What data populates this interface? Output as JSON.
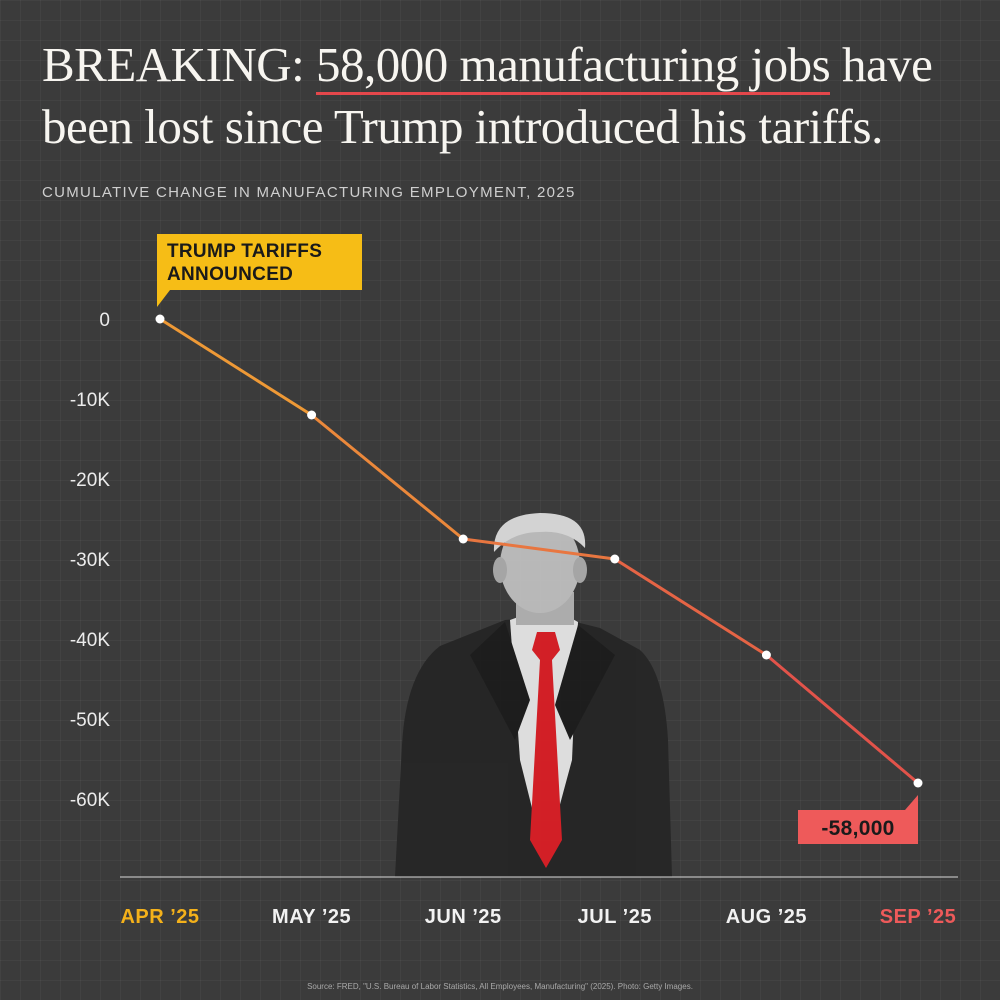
{
  "headline": {
    "prefix": "BREAKING: ",
    "highlight": "58,000 manufacturing jobs",
    "suffix": " have been lost since Trump introduced his tariffs."
  },
  "subtitle": "CUMULATIVE CHANGE IN MANUFACTURING EMPLOYMENT, 2025",
  "source": "Source: FRED, \"U.S. Bureau of Labor Statistics, All Employees, Manufacturing\" (2025). Photo: Getty Images.",
  "colors": {
    "orange": "#f0a233",
    "red": "#e04a4c",
    "yellow": "#f6bd16",
    "label_yellow": "#f4b11a",
    "label_red": "#ee5a5a"
  },
  "chart_data": {
    "type": "line",
    "title": "CUMULATIVE CHANGE IN MANUFACTURING EMPLOYMENT, 2025",
    "categories": [
      "APR ’25",
      "MAY ’25",
      "JUN ’25",
      "JUL ’25",
      "AUG ’25",
      "SEP ’25"
    ],
    "values": [
      0,
      -12000,
      -27500,
      -30000,
      -42000,
      -58000
    ],
    "ylim": [
      -70000,
      0
    ],
    "yticks": [
      0,
      -10000,
      -20000,
      -30000,
      -40000,
      -50000,
      -60000
    ],
    "ytick_labels": [
      "0",
      "-10K",
      "-20K",
      "-30K",
      "-40K",
      "-50K",
      "-60K"
    ],
    "xlabel": "",
    "ylabel": "",
    "annotations": [
      {
        "lines": [
          "TRUMP TARIFFS",
          "ANNOUNCED"
        ],
        "category": "APR ’25",
        "value": 0
      },
      {
        "lines": [
          "-58,000"
        ],
        "category": "SEP ’25",
        "value": -58000
      }
    ]
  }
}
